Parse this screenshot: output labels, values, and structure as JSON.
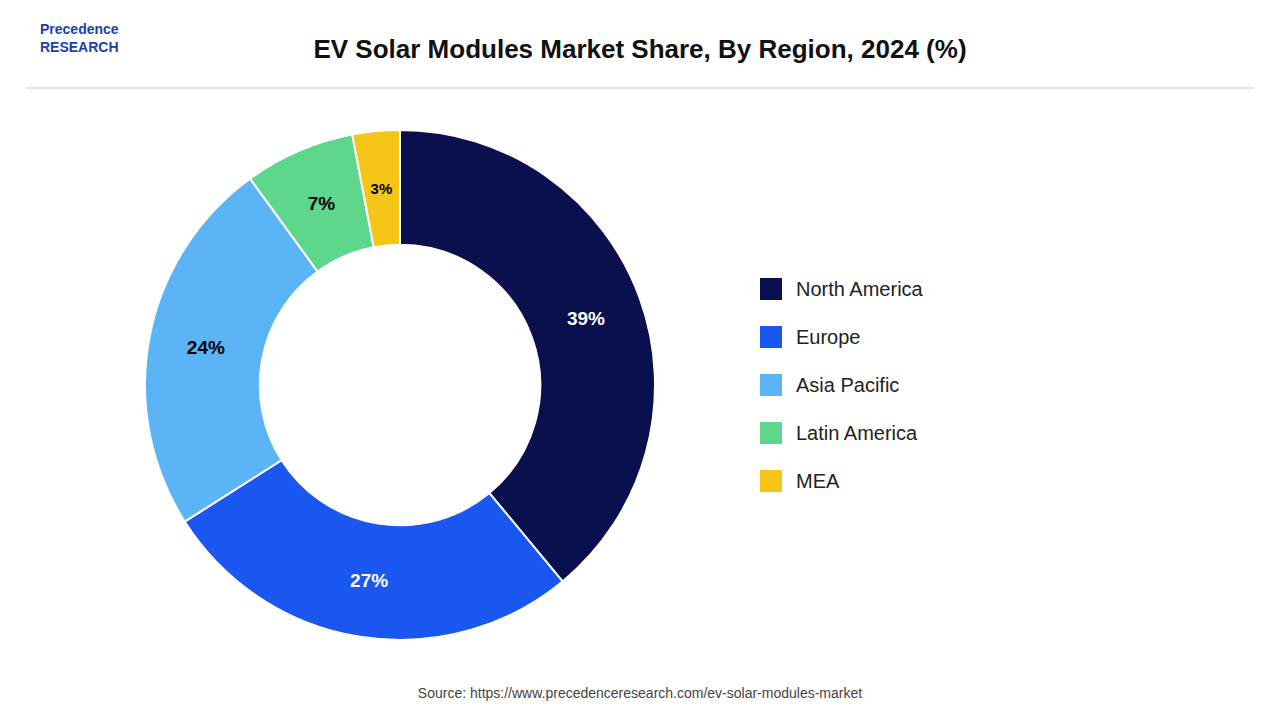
{
  "chart_data": {
    "type": "donut",
    "title": "EV Solar Modules Market Share, By Region, 2024 (%)",
    "categories": [
      "North America",
      "Europe",
      "Asia Pacific",
      "Latin America",
      "MEA"
    ],
    "values": [
      39,
      27,
      24,
      7,
      3
    ],
    "value_labels": [
      "39%",
      "27%",
      "24%",
      "7%",
      "3%"
    ],
    "colors": [
      "#0a0f4e",
      "#1a56f0",
      "#5ab4f5",
      "#5ed68c",
      "#f5c518"
    ],
    "data_labels": true,
    "legend": "right",
    "annotations": [
      "Source: https://www.precedenceresearch.com/ev-solar-modules-market",
      "Precedence\nRESEARCH"
    ]
  }
}
